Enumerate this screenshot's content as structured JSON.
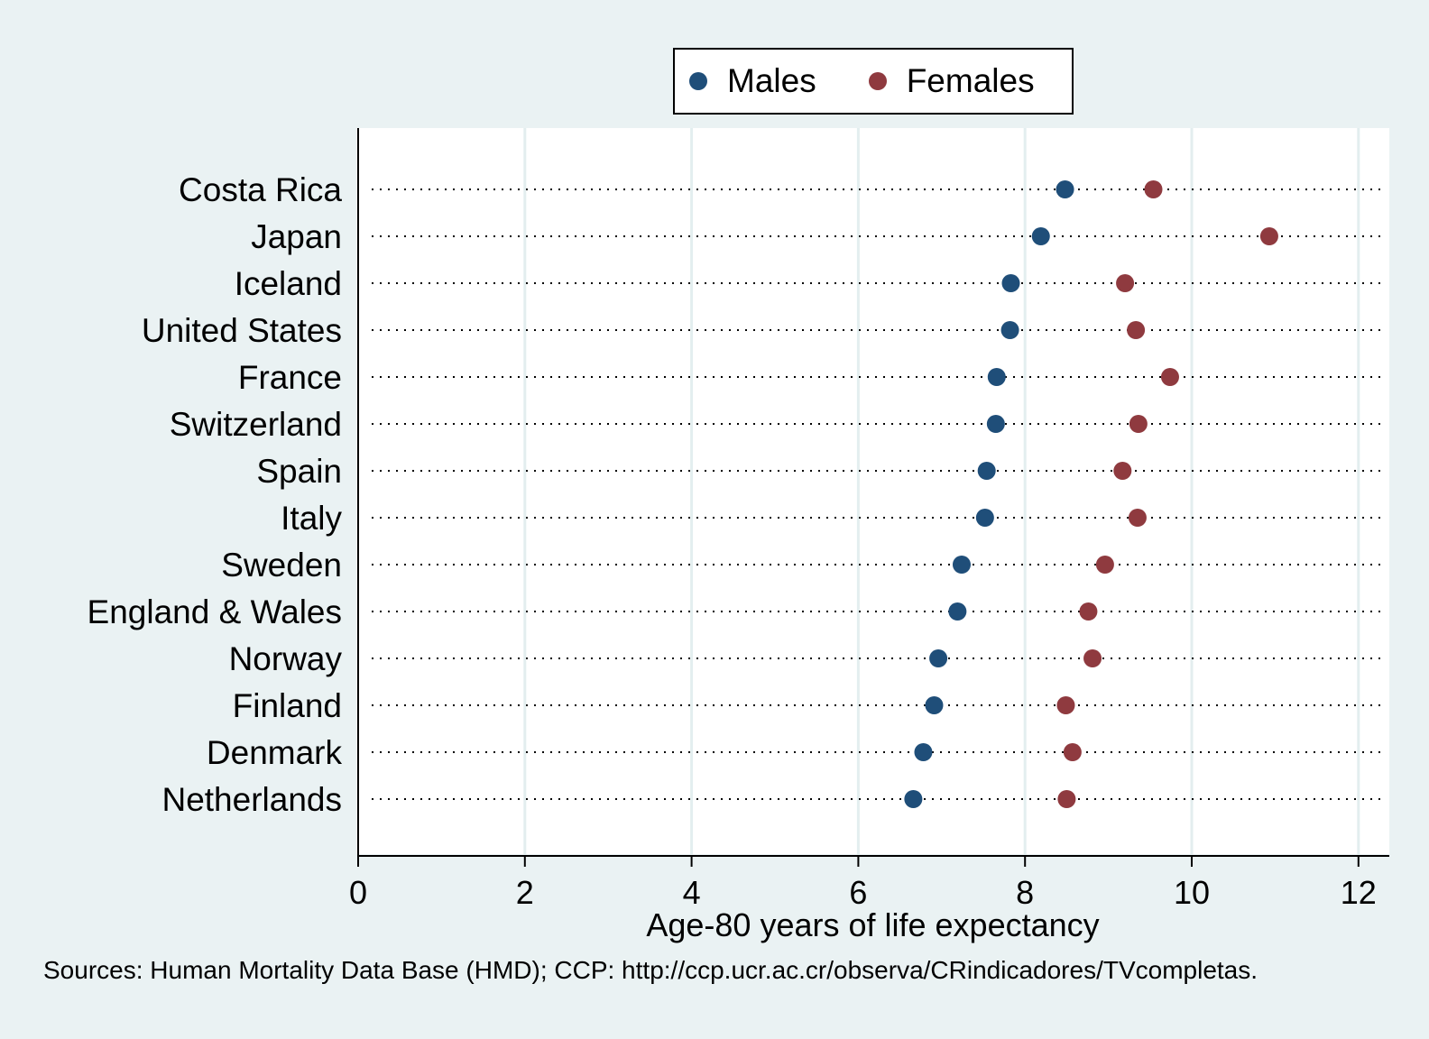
{
  "chart_data": {
    "type": "scatter",
    "title": "",
    "xlabel": "Age-80 years of life expectancy",
    "ylabel": "",
    "xlim": [
      0,
      12.4
    ],
    "xticks": [
      0,
      2,
      4,
      6,
      8,
      10,
      12
    ],
    "grid": true,
    "legend_position": "top",
    "categories": [
      "Costa Rica",
      "Japan",
      "Iceland",
      "United States",
      "France",
      "Switzerland",
      "Spain",
      "Italy",
      "Sweden",
      "England & Wales",
      "Norway",
      "Finland",
      "Denmark",
      "Netherlands"
    ],
    "series": [
      {
        "name": "Males",
        "color": "#1f4e79",
        "values": [
          8.48,
          8.19,
          7.83,
          7.82,
          7.66,
          7.65,
          7.54,
          7.52,
          7.24,
          7.19,
          6.96,
          6.91,
          6.78,
          6.66
        ]
      },
      {
        "name": "Females",
        "color": "#8f3a3f",
        "values": [
          9.54,
          10.93,
          9.2,
          9.33,
          9.74,
          9.36,
          9.17,
          9.35,
          8.96,
          8.76,
          8.81,
          8.49,
          8.57,
          8.5
        ]
      }
    ],
    "note": "Sources: Human Mortality Data Base (HMD); CCP: http://ccp.ucr.ac.cr/observa/CRindicadores/TVcompletas."
  }
}
